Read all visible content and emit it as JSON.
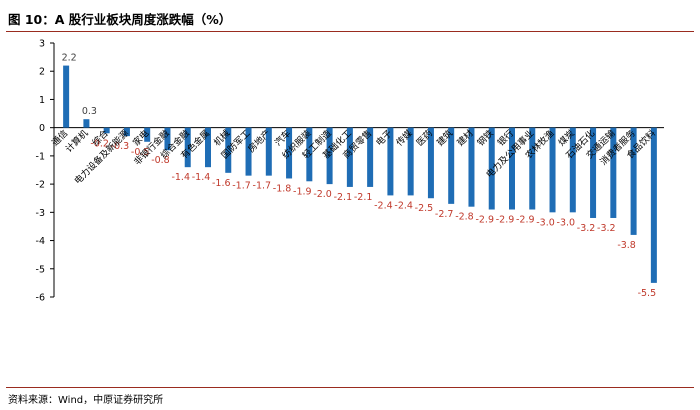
{
  "header": {
    "title": "图 10：A 股行业板块周度涨跌幅（%）"
  },
  "footer": {
    "source": "资料来源：Wind，中原证券研究所"
  },
  "colors": {
    "bar": "#1f6db5",
    "positive_label": "#404040",
    "negative_label": "#c0392b",
    "rule": "#9a2c1f"
  },
  "chart_data": {
    "type": "bar",
    "title": "",
    "xlabel": "",
    "ylabel": "",
    "ylim": [
      -6,
      3
    ],
    "yticks": [
      3,
      2,
      1,
      0,
      -1,
      -2,
      -3,
      -4,
      -5,
      -6
    ],
    "grid": false,
    "categories": [
      "通信",
      "计算机",
      "综合",
      "电力设备及新能源",
      "家电",
      "非银行金融",
      "综合金融",
      "有色金属",
      "机械",
      "国防军工",
      "房地产",
      "汽车",
      "纺织服装",
      "轻工制造",
      "基础化工",
      "商贸零售",
      "电子",
      "传媒",
      "医药",
      "建筑",
      "建材",
      "钢铁",
      "银行",
      "电力及公用事业",
      "农林牧渔",
      "煤炭",
      "石油石化",
      "交通运输",
      "消费者服务",
      "食品饮料"
    ],
    "values": [
      2.2,
      0.3,
      -0.2,
      -0.3,
      -0.5,
      -0.8,
      -1.4,
      -1.4,
      -1.6,
      -1.7,
      -1.7,
      -1.8,
      -1.9,
      -2.0,
      -2.1,
      -2.1,
      -2.4,
      -2.4,
      -2.5,
      -2.7,
      -2.8,
      -2.9,
      -2.9,
      -2.9,
      -3.0,
      -3.0,
      -3.2,
      -3.2,
      -3.8,
      -5.5
    ],
    "value_labels": [
      "2.2",
      "0.3",
      "-0.2",
      "-0.3",
      "-0.5",
      "-0.8",
      "-1.4",
      "-1.4",
      "-1.6",
      "-1.7",
      "-1.7",
      "-1.8",
      "-1.9",
      "-2.0",
      "-2.1",
      "-2.1",
      "-2.4",
      "-2.4",
      "-2.5",
      "-2.7",
      "-2.8",
      "-2.9",
      "-2.9",
      "-2.9",
      "-3.0",
      "-3.0",
      "-3.2",
      "-3.2",
      "-3.8",
      "-5.5"
    ]
  }
}
